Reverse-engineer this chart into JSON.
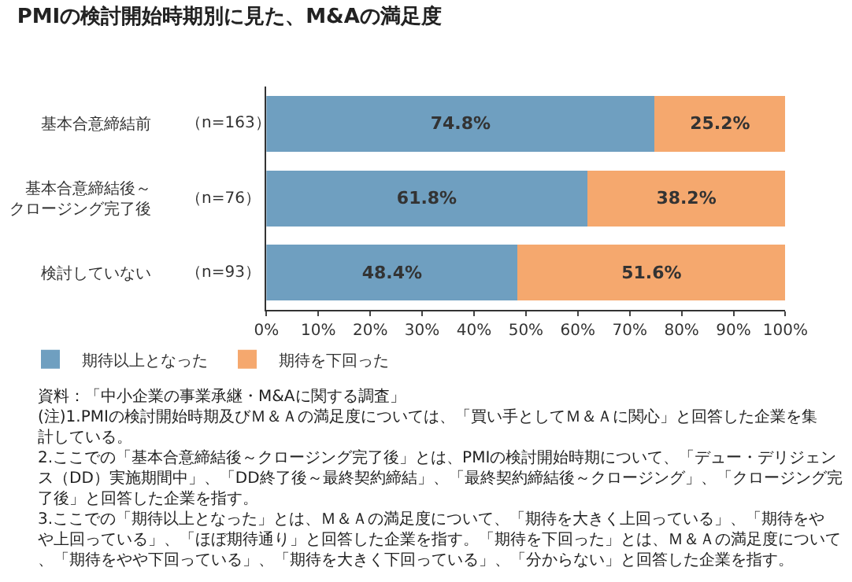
{
  "chart_data": {
    "type": "bar",
    "orientation": "horizontal",
    "stacked": true,
    "title": "PMIの検討開始時期別に見た、M&Aの満足度",
    "categories": [
      "基本合意締結前",
      "基本合意締結後～クロージング完了後",
      "検討していない"
    ],
    "y2_categories": [
      "（n=163）",
      "（n=76）",
      "（n=93）"
    ],
    "series": [
      {
        "name": "期待以上となった",
        "color": "#6f9fc0",
        "values": [
          74.8,
          61.8,
          48.4
        ],
        "value_labels": [
          "74.8%",
          "61.8%",
          "48.4%"
        ]
      },
      {
        "name": "期待を下回った",
        "color": "#f5a86e",
        "values": [
          25.2,
          38.2,
          51.6
        ],
        "value_labels": [
          "25.2%",
          "38.2%",
          "51.6%"
        ]
      }
    ],
    "xlim": [
      0,
      100
    ],
    "xticks": [
      {
        "value": 0,
        "label": "0%"
      },
      {
        "value": 10,
        "label": "10%"
      },
      {
        "value": 20,
        "label": "20%"
      },
      {
        "value": 30,
        "label": "30%"
      },
      {
        "value": 40,
        "label": "40%"
      },
      {
        "value": 50,
        "label": "50%"
      },
      {
        "value": 60,
        "label": "60%"
      },
      {
        "value": 70,
        "label": "70%"
      },
      {
        "value": 80,
        "label": "80%"
      },
      {
        "value": 90,
        "label": "90%"
      },
      {
        "value": 100,
        "label": "100%"
      }
    ],
    "legend": "bottom left",
    "annotations": [
      "資料：「中小企業の事業承継・M&Aに関する調査」",
      "(注)1.PMIの検討開始時期及びＭ＆Ａの満足度については、「買い手としてＭ＆Ａに関心」と回答した企業を集計している。",
      "2.ここでの「基本合意締結後～クロージング完了後」とは、PMIの検討開始時期について、「デュー・デリジェンス（DD）実施期間中」、「DD終了後～最終契約締結」、「最終契約締結後～クロージング」、「クロージング完了後」と回答した企業を指す。",
      "3.ここでの「期待以上となった」とは、Ｍ＆Ａの満足度について、「期待を大きく上回っている」、「期待をやや上回っている」、「ほぼ期待通り」と回答した企業を指す。「期待を下回った」とは、Ｍ＆Ａの満足度について、「期待をやや下回っている」、「期待を大きく下回っている」、「分からない」と回答した企業を指す。"
    ]
  }
}
